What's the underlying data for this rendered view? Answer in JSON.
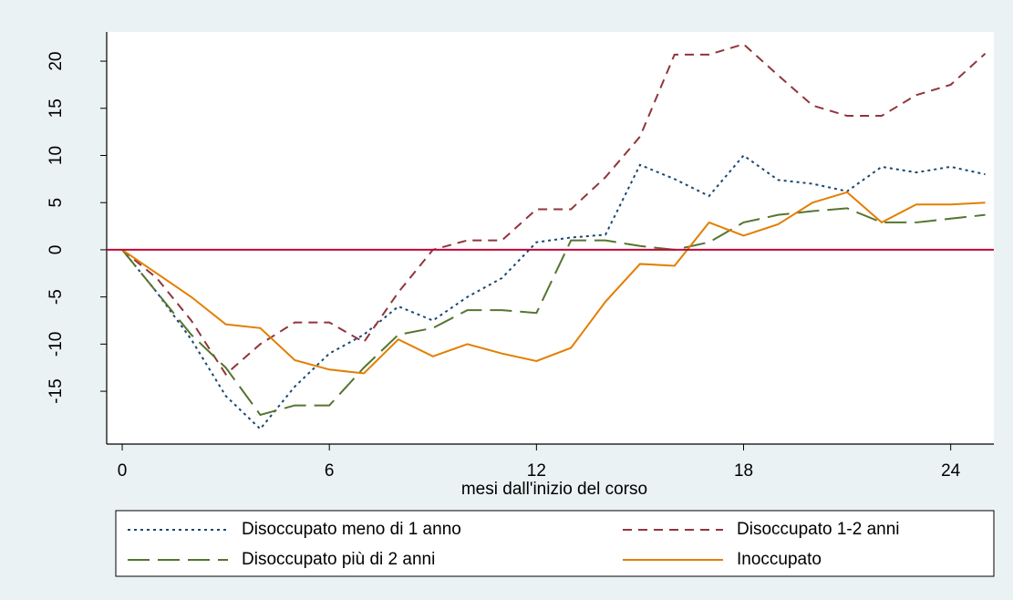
{
  "chart_data": {
    "type": "line",
    "x_label": "mesi dall'inizio del corso",
    "x": [
      0,
      1,
      2,
      3,
      4,
      5,
      6,
      7,
      8,
      9,
      10,
      11,
      12,
      13,
      14,
      15,
      16,
      17,
      18,
      19,
      20,
      21,
      22,
      23,
      24,
      25
    ],
    "series": [
      {
        "name": "Disoccupato meno di 1 anno",
        "color": "#1a476f",
        "dash": "3,4",
        "values": [
          0,
          -4.5,
          -9.5,
          -15.5,
          -19,
          -14.5,
          -11,
          -9,
          -6,
          -7.5,
          -5,
          -3,
          0.8,
          1.3,
          1.6,
          9,
          7.5,
          5.7,
          10,
          7.4,
          7,
          6.2,
          8.8,
          8.2,
          8.8,
          8
        ]
      },
      {
        "name": "Disoccupato 1-2 anni",
        "color": "#90353b",
        "dash": "10,7",
        "values": [
          0,
          -3,
          -7.5,
          -13.2,
          -10,
          -7.7,
          -7.7,
          -9.8,
          -4.5,
          0,
          1,
          1,
          4.3,
          4.3,
          7.7,
          12,
          20.7,
          20.7,
          21.8,
          18.5,
          15.3,
          14.2,
          14.2,
          16.4,
          17.5,
          20.8
        ]
      },
      {
        "name": "Disoccupato più di 2 anni",
        "color": "#55752f",
        "dash": "24,9",
        "values": [
          0,
          -4.5,
          -9,
          -12.5,
          -17.5,
          -16.5,
          -16.5,
          -12.5,
          -9,
          -8.3,
          -6.4,
          -6.4,
          -6.7,
          1,
          1,
          0.4,
          0,
          0.8,
          2.9,
          3.7,
          4.1,
          4.4,
          2.9,
          2.9,
          3.3,
          3.7
        ]
      },
      {
        "name": "Inoccupato",
        "color": "#e37e00",
        "dash": "none",
        "values": [
          0,
          -2.5,
          -5,
          -7.9,
          -8.3,
          -11.7,
          -12.7,
          -13.1,
          -9.5,
          -11.3,
          -10,
          -11,
          -11.8,
          -10.4,
          -5.5,
          -1.5,
          -1.7,
          2.9,
          1.5,
          2.7,
          5,
          6.1,
          2.9,
          4.8,
          4.8,
          5
        ]
      }
    ],
    "xlim": [
      -0.45,
      25.25
    ],
    "xticks": [
      0,
      6,
      12,
      18,
      24
    ],
    "ylim": [
      -20.6,
      23.1
    ],
    "yticks": [
      -15,
      -10,
      -5,
      0,
      5,
      10,
      15,
      20
    ],
    "yline": 0,
    "yline_color": "#c10534"
  }
}
